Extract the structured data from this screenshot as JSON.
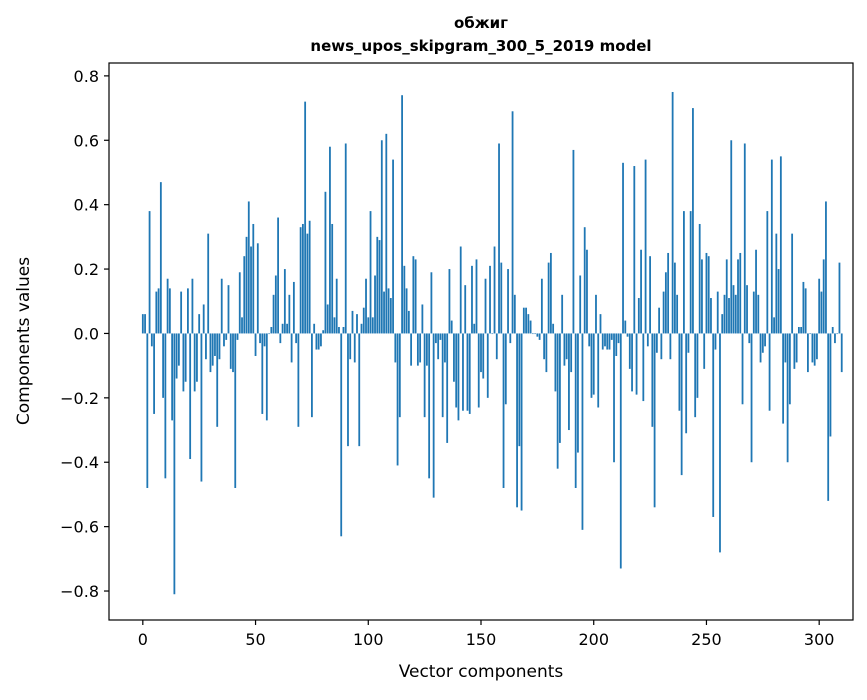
{
  "chart_data": {
    "type": "bar",
    "title": "обжиг",
    "subtitle": "news_upos_skipgram_300_5_2019 model",
    "xlabel": "Vector components",
    "ylabel": "Components values",
    "xlim": [
      -15,
      315
    ],
    "ylim": [
      -0.89,
      0.84
    ],
    "x_ticks": [
      0,
      50,
      100,
      150,
      200,
      250,
      300
    ],
    "x_tick_labels": [
      "0",
      "50",
      "100",
      "150",
      "200",
      "250",
      "300"
    ],
    "y_ticks": [
      -0.8,
      -0.6,
      -0.4,
      -0.2,
      0.0,
      0.2,
      0.4,
      0.6,
      0.8
    ],
    "y_tick_labels": [
      "−0.8",
      "−0.6",
      "−0.4",
      "−0.2",
      "0.0",
      "0.2",
      "0.4",
      "0.6",
      "0.8"
    ],
    "bar_color": "#1f77b4",
    "values": [
      0.06,
      0.06,
      -0.48,
      0.38,
      -0.04,
      -0.25,
      0.13,
      0.14,
      0.47,
      -0.2,
      -0.45,
      0.17,
      0.14,
      -0.27,
      -0.81,
      -0.14,
      -0.1,
      0.13,
      -0.18,
      -0.15,
      0.14,
      -0.39,
      0.17,
      -0.18,
      -0.15,
      0.06,
      -0.46,
      0.09,
      -0.08,
      0.31,
      -0.12,
      -0.1,
      -0.07,
      -0.29,
      -0.08,
      0.17,
      -0.04,
      -0.02,
      0.15,
      -0.11,
      -0.12,
      -0.48,
      -0.02,
      0.19,
      0.05,
      0.24,
      0.3,
      0.41,
      0.27,
      0.34,
      -0.07,
      0.28,
      -0.03,
      -0.25,
      -0.04,
      -0.27,
      0.0,
      0.02,
      0.12,
      0.18,
      0.36,
      -0.03,
      0.03,
      0.2,
      0.03,
      0.12,
      -0.09,
      0.16,
      -0.03,
      -0.29,
      0.33,
      0.34,
      0.72,
      0.31,
      0.35,
      -0.26,
      0.03,
      -0.05,
      -0.05,
      -0.04,
      0.01,
      0.44,
      0.09,
      0.58,
      0.34,
      0.05,
      0.17,
      0.02,
      -0.63,
      0.02,
      0.59,
      -0.35,
      -0.08,
      0.07,
      -0.09,
      0.06,
      -0.35,
      0.03,
      0.08,
      0.17,
      0.05,
      0.38,
      0.05,
      0.18,
      0.3,
      0.29,
      0.6,
      0.13,
      0.62,
      0.14,
      0.11,
      0.54,
      -0.09,
      -0.41,
      -0.26,
      0.74,
      0.21,
      0.14,
      0.07,
      -0.1,
      0.24,
      0.23,
      -0.1,
      -0.09,
      0.09,
      -0.26,
      -0.1,
      -0.45,
      0.19,
      -0.51,
      -0.03,
      -0.08,
      -0.02,
      -0.26,
      -0.09,
      -0.34,
      0.2,
      0.04,
      -0.15,
      -0.23,
      -0.27,
      0.27,
      -0.24,
      0.15,
      -0.24,
      -0.25,
      0.21,
      0.03,
      0.23,
      -0.23,
      -0.12,
      -0.14,
      0.17,
      -0.2,
      0.21,
      0.0,
      0.27,
      -0.08,
      0.59,
      0.22,
      -0.48,
      -0.22,
      0.2,
      -0.03,
      0.69,
      0.12,
      -0.54,
      -0.35,
      -0.55,
      0.08,
      0.08,
      0.06,
      0.04,
      0.0,
      0.0,
      -0.01,
      -0.02,
      0.17,
      -0.08,
      -0.12,
      0.22,
      0.25,
      0.03,
      -0.18,
      -0.42,
      -0.34,
      0.12,
      -0.1,
      -0.08,
      -0.3,
      -0.12,
      0.57,
      -0.48,
      -0.37,
      0.18,
      -0.61,
      0.33,
      0.26,
      -0.04,
      -0.2,
      -0.19,
      0.12,
      -0.23,
      0.06,
      -0.05,
      -0.04,
      -0.05,
      -0.05,
      -0.02,
      -0.4,
      -0.07,
      -0.03,
      -0.73,
      0.53,
      0.04,
      -0.01,
      -0.11,
      -0.18,
      0.52,
      -0.19,
      0.11,
      0.26,
      -0.21,
      0.54,
      -0.04,
      0.24,
      -0.29,
      -0.54,
      -0.06,
      0.08,
      -0.08,
      0.13,
      0.19,
      0.25,
      -0.08,
      0.75,
      0.22,
      0.12,
      -0.24,
      -0.44,
      0.38,
      -0.31,
      -0.06,
      0.38,
      0.7,
      -0.26,
      -0.2,
      0.34,
      0.23,
      -0.11,
      0.25,
      0.24,
      0.11,
      -0.57,
      -0.05,
      0.13,
      -0.68,
      0.06,
      0.12,
      0.23,
      0.11,
      0.6,
      0.15,
      0.12,
      0.23,
      0.25,
      -0.22,
      0.59,
      0.15,
      -0.03,
      -0.4,
      0.13,
      0.26,
      0.12,
      -0.09,
      -0.06,
      -0.04,
      0.38,
      -0.24,
      0.54,
      0.05,
      0.31,
      0.2,
      0.55,
      -0.28,
      -0.09,
      -0.4,
      -0.22,
      0.31,
      -0.11,
      -0.09,
      0.02,
      0.02,
      0.16,
      0.14,
      -0.12,
      0.0,
      -0.09,
      -0.1,
      -0.08,
      0.17,
      0.13,
      0.23,
      0.41,
      -0.52,
      -0.32,
      0.02,
      -0.03,
      0.0,
      0.22,
      -0.12
    ]
  }
}
